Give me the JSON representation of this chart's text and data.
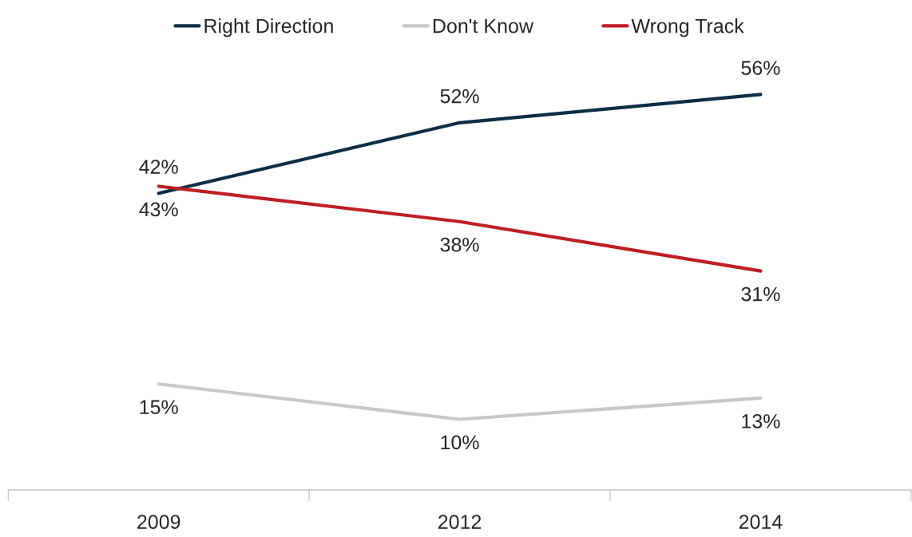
{
  "chart_data": {
    "type": "line",
    "categories": [
      "2009",
      "2012",
      "2014"
    ],
    "series": [
      {
        "name": "Right Direction",
        "color": "#0d2f45",
        "values": [
          42,
          52,
          56
        ],
        "value_labels": [
          "42%",
          "52%",
          "56%"
        ]
      },
      {
        "name": "Don't Know",
        "color": "#c8c8c8",
        "values": [
          15,
          10,
          13
        ],
        "value_labels": [
          "15%",
          "10%",
          "13%"
        ]
      },
      {
        "name": "Wrong Track",
        "color": "#be1e24",
        "values": [
          43,
          38,
          31
        ],
        "value_labels": [
          "43%",
          "38%",
          "31%"
        ]
      }
    ],
    "legend": "top",
    "grid": false,
    "marker": "none",
    "line_style": "solid",
    "tick_labels": "x"
  }
}
